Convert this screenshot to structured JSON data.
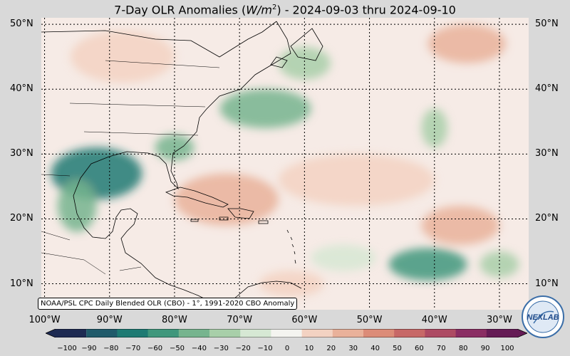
{
  "title": {
    "prefix": "7-Day OLR Anomalies (",
    "unit_base": "W/m",
    "unit_exp": "2",
    "suffix": ") - 2024-09-03 thru 2024-09-10"
  },
  "credit": "NOAA/PSL CPC Daily Blended OLR (CBO) - 1°, 1991-2020 CBO Anomaly",
  "lat_labels": [
    {
      "lat": 50,
      "text": "50°N"
    },
    {
      "lat": 40,
      "text": "40°N"
    },
    {
      "lat": 30,
      "text": "30°N"
    },
    {
      "lat": 20,
      "text": "20°N"
    },
    {
      "lat": 10,
      "text": "10°N"
    }
  ],
  "lon_labels": [
    {
      "lon": -100,
      "text": "100°W"
    },
    {
      "lon": -90,
      "text": "90°W"
    },
    {
      "lon": -80,
      "text": "80°W"
    },
    {
      "lon": -70,
      "text": "70°W"
    },
    {
      "lon": -60,
      "text": "60°W"
    },
    {
      "lon": -50,
      "text": "50°W"
    },
    {
      "lon": -40,
      "text": "40°W"
    },
    {
      "lon": -30,
      "text": "30°W"
    }
  ],
  "extent": {
    "lon_min": -100.5,
    "lon_max": -25.5,
    "lat_min": 6,
    "lat_max": 51
  },
  "colorbar": {
    "min": -100,
    "max": 100,
    "ticks": [
      "−100",
      "−90",
      "−80",
      "−70",
      "−60",
      "−50",
      "−40",
      "−30",
      "−20",
      "−10",
      "0",
      "10",
      "20",
      "30",
      "40",
      "50",
      "60",
      "70",
      "80",
      "90",
      "100"
    ],
    "colors": [
      "#1d2a52",
      "#1f5a6a",
      "#1d7a73",
      "#3f977c",
      "#76b48e",
      "#a8cfa9",
      "#d6e8d4",
      "#f4f4f0",
      "#f3d2c2",
      "#e9b19a",
      "#dc8c78",
      "#c76867",
      "#ad4a63",
      "#8a2d63",
      "#651b55"
    ]
  },
  "logo_text": "NEXLAB",
  "anomalies": [
    {
      "lon": -92,
      "lat": 27,
      "rx": 7,
      "ry": 4,
      "value": -70
    },
    {
      "lon": -95,
      "lat": 22,
      "rx": 3,
      "ry": 4,
      "value": -50
    },
    {
      "lon": -80,
      "lat": 31,
      "rx": 3,
      "ry": 2,
      "value": -40
    },
    {
      "lon": -66,
      "lat": 37,
      "rx": 7,
      "ry": 3,
      "value": -45
    },
    {
      "lon": -60,
      "lat": 44,
      "rx": 4,
      "ry": 2.5,
      "value": -30
    },
    {
      "lon": -40,
      "lat": 34,
      "rx": 2,
      "ry": 3,
      "value": -30
    },
    {
      "lon": -41,
      "lat": 13,
      "rx": 6,
      "ry": 2.5,
      "value": -55
    },
    {
      "lon": -30,
      "lat": 13,
      "rx": 3,
      "ry": 2,
      "value": -25
    },
    {
      "lon": -54,
      "lat": 14,
      "rx": 5,
      "ry": 2,
      "value": -20
    },
    {
      "lon": -72,
      "lat": 23,
      "rx": 8,
      "ry": 4,
      "value": 25
    },
    {
      "lon": -52,
      "lat": 26,
      "rx": 12,
      "ry": 4,
      "value": 20
    },
    {
      "lon": -35,
      "lat": 47,
      "rx": 6,
      "ry": 3,
      "value": 25
    },
    {
      "lon": -36,
      "lat": 19,
      "rx": 6,
      "ry": 3,
      "value": 25
    },
    {
      "lon": -88,
      "lat": 45,
      "rx": 8,
      "ry": 4,
      "value": 15
    },
    {
      "lon": -62,
      "lat": 10,
      "rx": 5,
      "ry": 2,
      "value": 15
    }
  ]
}
